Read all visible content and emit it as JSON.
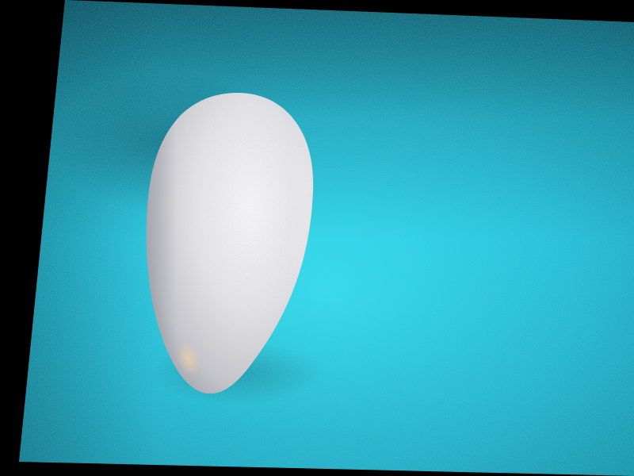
{
  "scene": {
    "subject": "egg-on-cyan-surface",
    "colors": {
      "background": "#000000",
      "surface_light": "#28d8ee",
      "surface_mid": "#1ab8d2",
      "surface_dark": "#0d7f98",
      "egg_highlight": "#f4f4f6",
      "egg_mid": "#d9d9de",
      "egg_shadow": "#9a9aa3",
      "egg_warm_reflection": "#e7c9a8"
    }
  }
}
